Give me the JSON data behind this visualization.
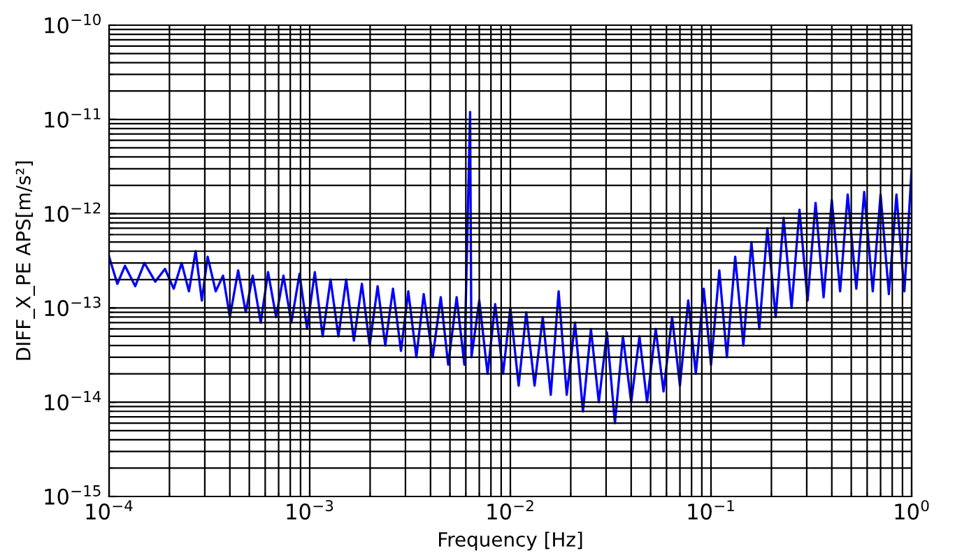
{
  "chart_data": {
    "type": "line",
    "xlabel": "Frequency [Hz]",
    "ylabel": "DIFF_X_PE APS[m/s²]",
    "log": "xy",
    "grid": true,
    "line_style": "solid",
    "xlim": [
      0.0001,
      1
    ],
    "ylim": [
      1e-15,
      1e-10
    ],
    "xticks": [
      {
        "value": 0.0001,
        "label": "10$^{−4}$"
      },
      {
        "value": 0.001,
        "label": "10$^{−3}$"
      },
      {
        "value": 0.01,
        "label": "10$^{−2}$"
      },
      {
        "value": 0.1,
        "label": "10$^{−1}$"
      },
      {
        "value": 1,
        "label": "10$^{0}$"
      }
    ],
    "yticks": [
      {
        "value": 1e-15,
        "label": "10$^{−15}$"
      },
      {
        "value": 1e-14,
        "label": "10$^{−14}$"
      },
      {
        "value": 1e-13,
        "label": "10$^{−13}$"
      },
      {
        "value": 1e-12,
        "label": "10$^{−12}$"
      },
      {
        "value": 1e-11,
        "label": "10$^{−11}$"
      },
      {
        "value": 1e-10,
        "label": "10$^{−10}$"
      }
    ],
    "series": [
      {
        "color": "#0000ff",
        "x": [
          0.0001,
          0.00011,
          0.00012,
          0.000135,
          0.00015,
          0.00017,
          0.00019,
          0.00021,
          0.00023,
          0.00025,
          0.00027,
          0.00029,
          0.00031,
          0.00034,
          0.00037,
          0.0004,
          0.00044,
          0.00048,
          0.00052,
          0.00057,
          0.00062,
          0.00068,
          0.00074,
          0.00081,
          0.00089,
          0.00097,
          0.00106,
          0.00116,
          0.00127,
          0.00139,
          0.00152,
          0.00166,
          0.00182,
          0.00199,
          0.00218,
          0.00238,
          0.0026,
          0.00285,
          0.0031,
          0.0034,
          0.0037,
          0.0041,
          0.0045,
          0.0049,
          0.0054,
          0.0059,
          0.0063,
          0.0064,
          0.007,
          0.0077,
          0.0084,
          0.0092,
          0.01,
          0.011,
          0.012,
          0.0132,
          0.0145,
          0.0159,
          0.0174,
          0.0191,
          0.021,
          0.023,
          0.0252,
          0.0276,
          0.0303,
          0.0332,
          0.0364,
          0.04,
          0.044,
          0.048,
          0.053,
          0.058,
          0.064,
          0.07,
          0.077,
          0.084,
          0.092,
          0.1,
          0.11,
          0.12,
          0.132,
          0.145,
          0.159,
          0.174,
          0.191,
          0.21,
          0.23,
          0.252,
          0.276,
          0.303,
          0.332,
          0.364,
          0.4,
          0.44,
          0.48,
          0.53,
          0.58,
          0.64,
          0.7,
          0.77,
          0.84,
          0.92,
          1.0
        ],
        "values": [
          3.5e-13,
          1.8e-13,
          2.8e-13,
          1.7e-13,
          3e-13,
          1.9e-13,
          2.6e-13,
          1.6e-13,
          3e-13,
          1.5e-13,
          4e-13,
          1.2e-13,
          3.5e-13,
          1.5e-13,
          2.2e-13,
          8e-14,
          2.5e-13,
          9e-14,
          2.2e-13,
          7e-14,
          2.4e-13,
          8e-14,
          2.2e-13,
          7e-14,
          2.3e-13,
          6e-14,
          2.4e-13,
          5e-14,
          2e-13,
          5e-14,
          2e-13,
          4.5e-14,
          1.8e-13,
          4e-14,
          1.7e-13,
          4e-14,
          1.6e-13,
          3.5e-14,
          1.5e-13,
          3e-14,
          1.4e-13,
          3e-14,
          1.3e-13,
          2.5e-14,
          1.3e-13,
          2.5e-14,
          1.2e-11,
          3e-14,
          1.2e-13,
          2e-14,
          1.1e-13,
          2e-14,
          1e-13,
          1.5e-14,
          9e-14,
          1.5e-14,
          8e-14,
          1.2e-14,
          1.5e-13,
          1.2e-14,
          7e-14,
          8e-15,
          6e-14,
          1e-14,
          5.5e-14,
          6e-15,
          5e-14,
          1e-14,
          5e-14,
          1e-14,
          6e-14,
          1.3e-14,
          8e-14,
          1.5e-14,
          1.2e-13,
          2e-14,
          1.6e-13,
          2.5e-14,
          2.5e-13,
          3e-14,
          3.5e-13,
          4e-14,
          5e-13,
          6e-14,
          7e-13,
          8e-14,
          9e-13,
          1e-13,
          1.1e-12,
          1.2e-13,
          1.3e-12,
          1.3e-13,
          1.4e-12,
          1.5e-13,
          1.6e-12,
          1.6e-13,
          1.7e-12,
          1.5e-13,
          1.6e-12,
          1.4e-13,
          1.6e-12,
          1.5e-13,
          3e-12
        ]
      }
    ]
  }
}
